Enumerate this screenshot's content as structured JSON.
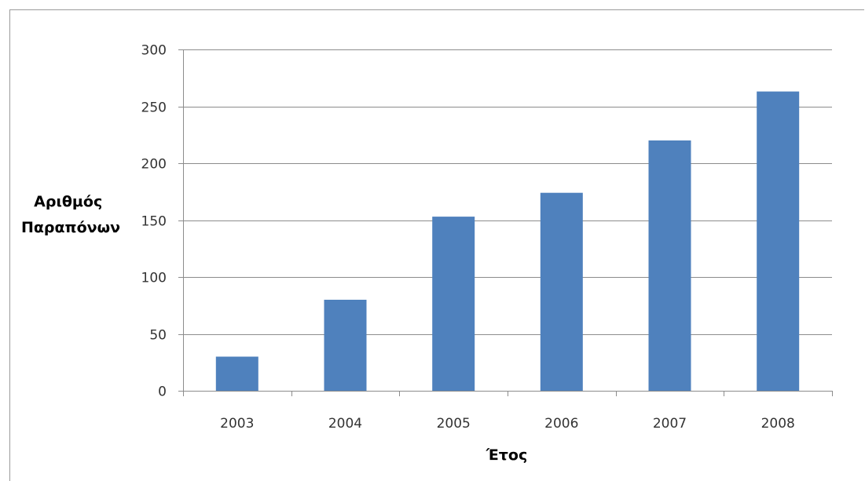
{
  "chart_data": {
    "type": "bar",
    "categories": [
      "2003",
      "2004",
      "2005",
      "2006",
      "2007",
      "2008"
    ],
    "values": [
      30,
      80,
      153,
      174,
      220,
      263
    ],
    "xlabel": "Έτος",
    "ylabel_lines": [
      "Αριθμός",
      "Παραπόνων"
    ],
    "ylim": [
      0,
      300
    ],
    "yticks": [
      "0",
      "50",
      "100",
      "150",
      "200",
      "250",
      "300"
    ],
    "grid": true,
    "bar_color": "#4f81bd",
    "gridline_color": "#8c8c8c",
    "axis_color": "#8c8c8c"
  }
}
